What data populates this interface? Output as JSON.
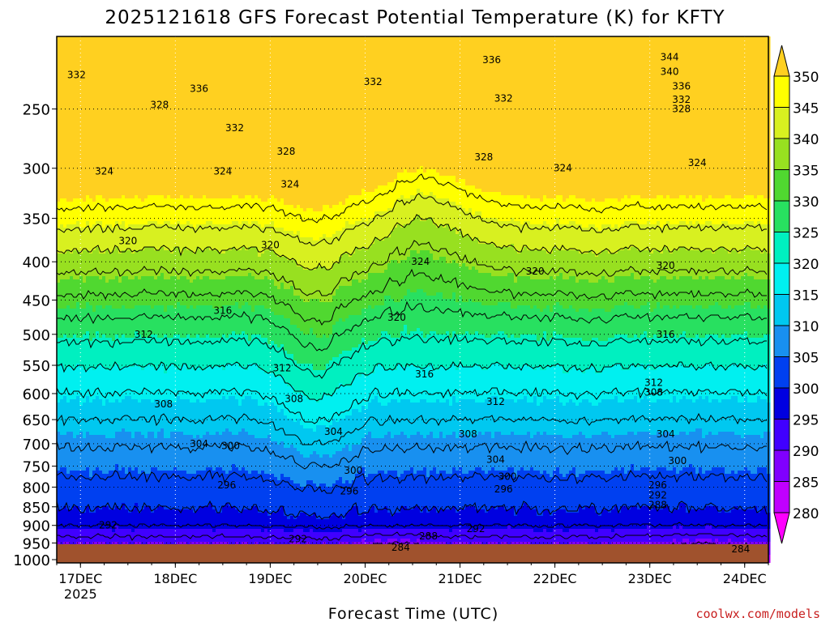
{
  "chart_data": {
    "type": "heatmap",
    "title": "2025121618 GFS Forecast Potential Temperature (K) for KFTY",
    "xlabel": "Forecast Time (UTC)",
    "ylabel": "",
    "credit": "coolwx.com/models",
    "x_ticks": [
      {
        "label": "17DEC",
        "sub": "2025",
        "hour": 6
      },
      {
        "label": "18DEC",
        "sub": "",
        "hour": 30
      },
      {
        "label": "19DEC",
        "sub": "",
        "hour": 54
      },
      {
        "label": "20DEC",
        "sub": "",
        "hour": 78
      },
      {
        "label": "21DEC",
        "sub": "",
        "hour": 102
      },
      {
        "label": "22DEC",
        "sub": "",
        "hour": 126
      },
      {
        "label": "23DEC",
        "sub": "",
        "hour": 150
      },
      {
        "label": "24DEC",
        "sub": "",
        "hour": 174
      }
    ],
    "x_range_hours": [
      0,
      180
    ],
    "y_axis": {
      "scale": "log",
      "units": "hPa",
      "range": [
        1010,
        200
      ],
      "ticks": [
        250,
        300,
        350,
        400,
        450,
        500,
        550,
        600,
        650,
        700,
        750,
        800,
        850,
        900,
        950,
        1000
      ]
    },
    "colorbar": {
      "levels": [
        280,
        285,
        290,
        295,
        300,
        305,
        310,
        315,
        320,
        325,
        330,
        335,
        340,
        345,
        350
      ],
      "colors": [
        "#ff00ff",
        "#c000ff",
        "#8000ff",
        "#4000ff",
        "#0000e0",
        "#0040f0",
        "#1890f0",
        "#00c8f0",
        "#00f0f0",
        "#00f0c0",
        "#28e060",
        "#50d830",
        "#98e020",
        "#d8f020",
        "#ffff00",
        "#ffd020"
      ]
    },
    "contour_labels": [
      {
        "text": "344",
        "hour": 155,
        "p": 213
      },
      {
        "text": "340",
        "hour": 155,
        "p": 223
      },
      {
        "text": "336",
        "hour": 110,
        "p": 215
      },
      {
        "text": "336",
        "hour": 158,
        "p": 233
      },
      {
        "text": "336",
        "hour": 36,
        "p": 235
      },
      {
        "text": "332",
        "hour": 5,
        "p": 225
      },
      {
        "text": "332",
        "hour": 80,
        "p": 230
      },
      {
        "text": "332",
        "hour": 113,
        "p": 242
      },
      {
        "text": "332",
        "hour": 158,
        "p": 243
      },
      {
        "text": "332",
        "hour": 45,
        "p": 265
      },
      {
        "text": "328",
        "hour": 26,
        "p": 247
      },
      {
        "text": "328",
        "hour": 158,
        "p": 250
      },
      {
        "text": "328",
        "hour": 108,
        "p": 290
      },
      {
        "text": "328",
        "hour": 58,
        "p": 285
      },
      {
        "text": "324",
        "hour": 12,
        "p": 303
      },
      {
        "text": "324",
        "hour": 42,
        "p": 303
      },
      {
        "text": "324",
        "hour": 59,
        "p": 315
      },
      {
        "text": "324",
        "hour": 128,
        "p": 300
      },
      {
        "text": "324",
        "hour": 162,
        "p": 295
      },
      {
        "text": "324",
        "hour": 92,
        "p": 400
      },
      {
        "text": "320",
        "hour": 18,
        "p": 375
      },
      {
        "text": "320",
        "hour": 54,
        "p": 380
      },
      {
        "text": "320",
        "hour": 121,
        "p": 412
      },
      {
        "text": "320",
        "hour": 154,
        "p": 405
      },
      {
        "text": "320",
        "hour": 86,
        "p": 475
      },
      {
        "text": "316",
        "hour": 42,
        "p": 465
      },
      {
        "text": "316",
        "hour": 154,
        "p": 500
      },
      {
        "text": "316",
        "hour": 93,
        "p": 565
      },
      {
        "text": "312",
        "hour": 22,
        "p": 500
      },
      {
        "text": "312",
        "hour": 57,
        "p": 555
      },
      {
        "text": "312",
        "hour": 151,
        "p": 580
      },
      {
        "text": "312",
        "hour": 111,
        "p": 615
      },
      {
        "text": "308",
        "hour": 27,
        "p": 620
      },
      {
        "text": "308",
        "hour": 60,
        "p": 610
      },
      {
        "text": "308",
        "hour": 104,
        "p": 680
      },
      {
        "text": "308",
        "hour": 151,
        "p": 598
      },
      {
        "text": "304",
        "hour": 36,
        "p": 700
      },
      {
        "text": "300",
        "hour": 44,
        "p": 705
      },
      {
        "text": "304",
        "hour": 70,
        "p": 675
      },
      {
        "text": "304",
        "hour": 111,
        "p": 735
      },
      {
        "text": "304",
        "hour": 154,
        "p": 680
      },
      {
        "text": "300",
        "hour": 75,
        "p": 760
      },
      {
        "text": "300",
        "hour": 114,
        "p": 775
      },
      {
        "text": "300",
        "hour": 157,
        "p": 738
      },
      {
        "text": "296",
        "hour": 43,
        "p": 795
      },
      {
        "text": "296",
        "hour": 74,
        "p": 810
      },
      {
        "text": "296",
        "hour": 113,
        "p": 805
      },
      {
        "text": "296",
        "hour": 152,
        "p": 795
      },
      {
        "text": "292",
        "hour": 152,
        "p": 820
      },
      {
        "text": "288",
        "hour": 152,
        "p": 845
      },
      {
        "text": "292",
        "hour": 13,
        "p": 900
      },
      {
        "text": "292",
        "hour": 106,
        "p": 910
      },
      {
        "text": "288",
        "hour": 94,
        "p": 930
      },
      {
        "text": "284",
        "hour": 87,
        "p": 963
      },
      {
        "text": "284",
        "hour": 173,
        "p": 968
      },
      {
        "text": "292",
        "hour": 61,
        "p": 938
      }
    ]
  }
}
